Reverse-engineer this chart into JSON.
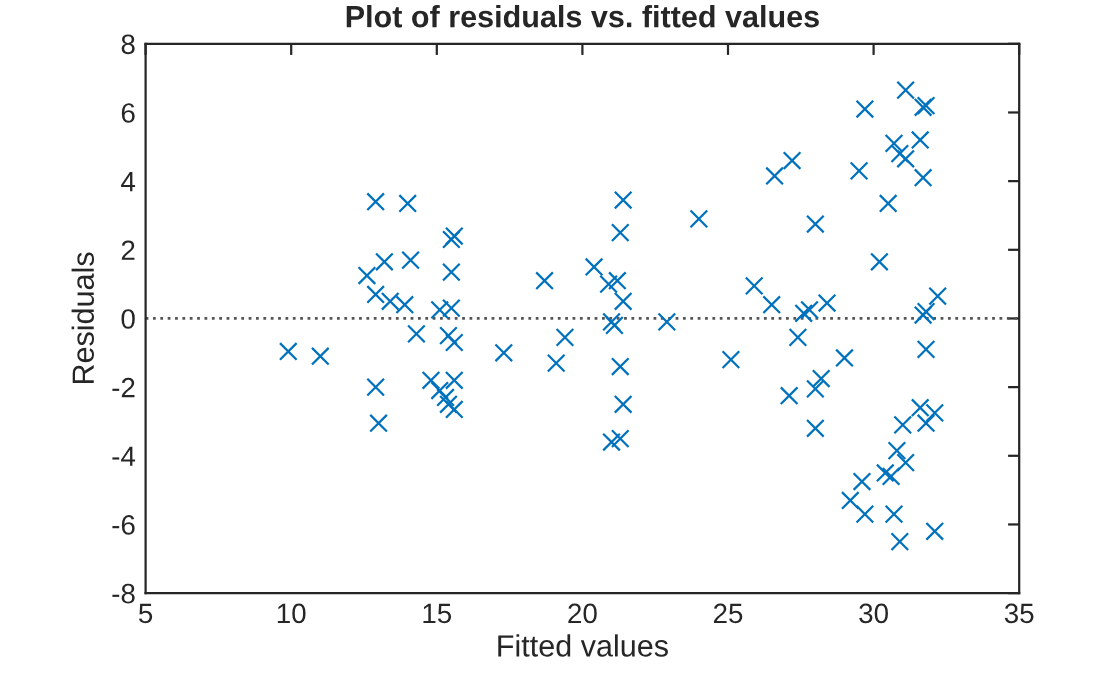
{
  "chart_data": {
    "type": "scatter",
    "title": "Plot of residuals vs. fitted values",
    "xlabel": "Fitted values",
    "ylabel": "Residuals",
    "x": [
      9.9,
      11.0,
      12.9,
      12.6,
      13.2,
      14.1,
      14.0,
      12.9,
      13.4,
      13.9,
      14.3,
      12.9,
      13.0,
      14.8,
      15.1,
      15.3,
      15.4,
      15.6,
      15.6,
      15.5,
      15.1,
      15.5,
      15.6,
      15.5,
      15.4,
      15.6,
      17.3,
      18.7,
      19.4,
      19.1,
      20.4,
      20.9,
      21.2,
      21.0,
      21.1,
      21.4,
      21.3,
      21.4,
      21.3,
      21.4,
      21.0,
      21.3,
      22.9,
      24.0,
      25.1,
      25.9,
      26.5,
      26.6,
      27.2,
      27.6,
      27.8,
      28.4,
      28.0,
      29.7,
      29.5,
      30.2,
      30.5,
      31.1,
      31.7,
      31.8,
      30.7,
      30.9,
      31.1,
      31.6,
      31.7,
      32.2,
      31.7,
      31.8,
      27.4,
      29.0,
      31.8,
      27.1,
      28.0,
      28.2,
      28.0,
      31.0,
      31.6,
      31.8,
      32.1,
      30.8,
      31.1,
      30.4,
      30.6,
      29.6,
      29.2,
      29.7,
      30.7,
      30.9,
      32.1
    ],
    "series": [
      {
        "color": "#0072bd",
        "values": [
          -0.96,
          -1.1,
          3.4,
          1.25,
          1.65,
          1.7,
          3.35,
          0.7,
          0.5,
          0.4,
          -0.45,
          -2.0,
          -3.05,
          -1.8,
          -2.1,
          -2.3,
          -2.5,
          -2.65,
          -1.8,
          0.3,
          0.25,
          2.3,
          2.4,
          1.35,
          -0.5,
          -0.7,
          -1.0,
          1.1,
          -0.55,
          -1.3,
          1.5,
          1.0,
          1.1,
          -0.1,
          -0.2,
          0.5,
          2.5,
          3.45,
          -1.4,
          -2.5,
          -3.6,
          -3.5,
          -0.1,
          2.9,
          -1.2,
          0.95,
          0.4,
          4.15,
          4.6,
          0.15,
          0.25,
          0.45,
          2.75,
          6.1,
          4.3,
          1.65,
          3.35,
          6.65,
          6.15,
          6.2,
          5.1,
          4.8,
          4.65,
          5.2,
          4.1,
          0.65,
          0.1,
          0.2,
          -0.55,
          -1.15,
          -0.9,
          -2.25,
          -2.05,
          -1.75,
          -3.2,
          -3.1,
          -2.6,
          -3.05,
          -2.75,
          -3.85,
          -4.2,
          -4.5,
          -4.6,
          -4.75,
          -5.3,
          -5.7,
          -5.7,
          -6.5,
          -6.2
        ]
      }
    ],
    "marker": "cross",
    "xlim": [
      5,
      35
    ],
    "ylim": [
      -8,
      8
    ],
    "xticks": [
      5,
      10,
      15,
      20,
      25,
      30,
      35
    ],
    "yticks": [
      -8,
      -6,
      -4,
      -2,
      0,
      2,
      4,
      6,
      8
    ],
    "ref_lines": [
      {
        "axis": "y",
        "value": 0,
        "color": "#555555",
        "line_style": "dotted"
      }
    ],
    "grid": false
  }
}
